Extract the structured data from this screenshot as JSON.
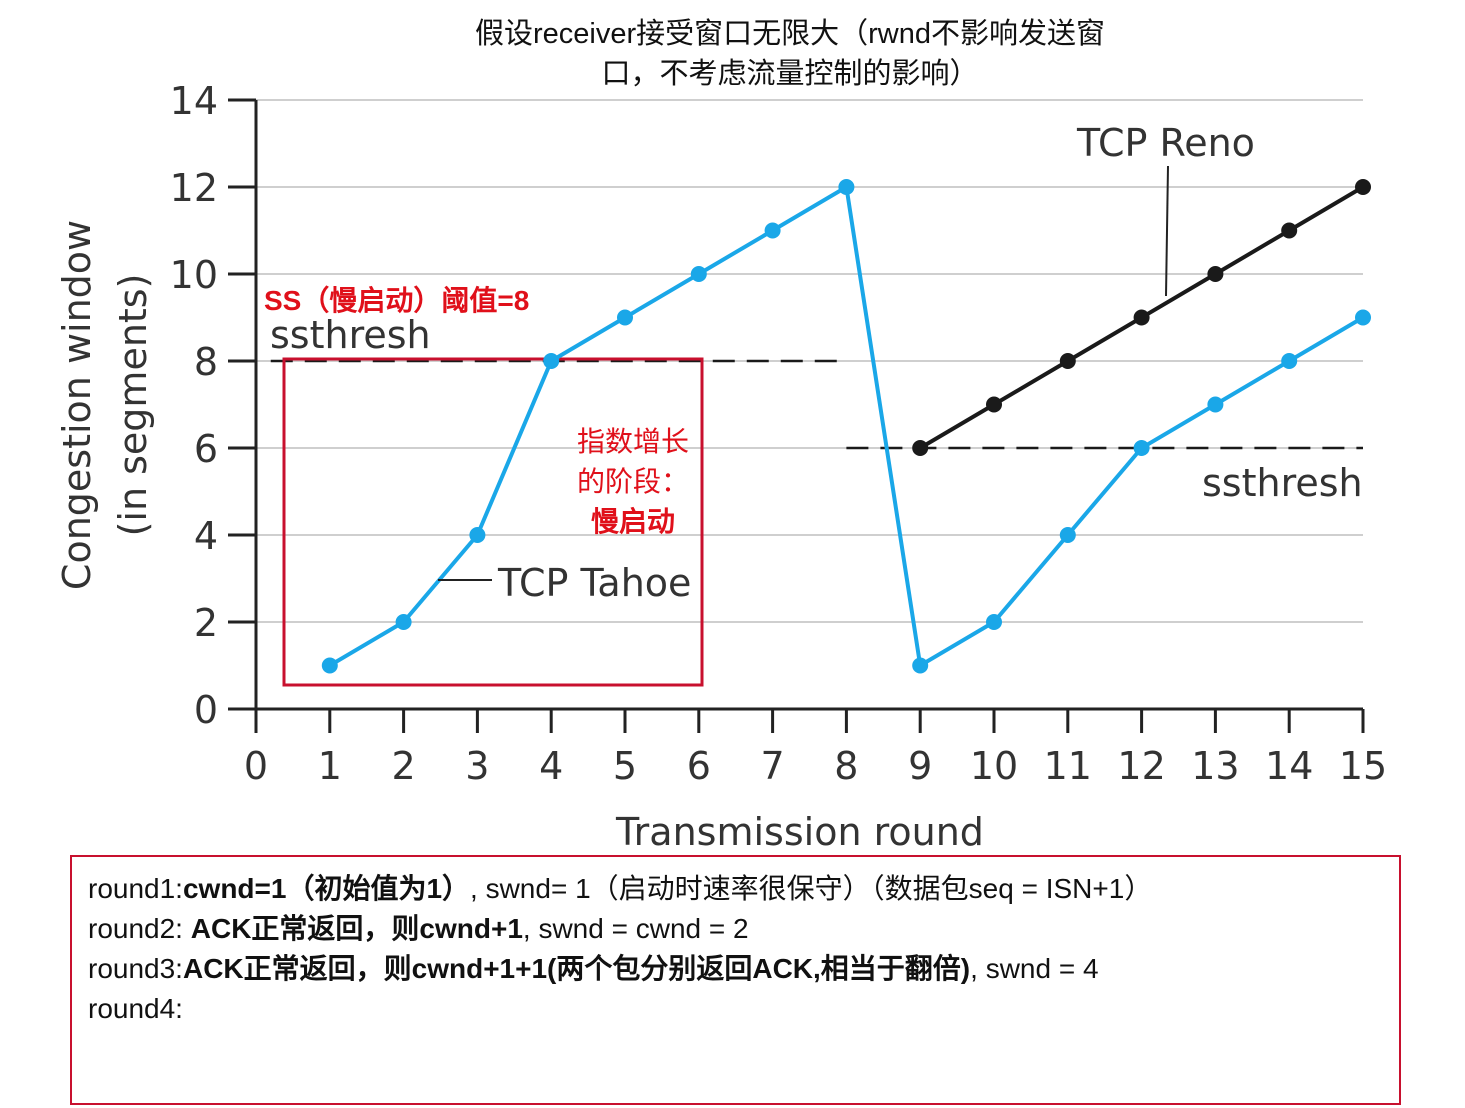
{
  "title_lines": [
    "假设receiver接受窗口无限大（rwnd不影响发送窗",
    "口，不考虑流量控制的影响）"
  ],
  "chart_data": {
    "type": "line",
    "xlabel": "Transmission round",
    "ylabel_lines": [
      "Congestion window",
      "(in segments)"
    ],
    "x_ticks": [
      0,
      1,
      2,
      3,
      4,
      5,
      6,
      7,
      8,
      9,
      10,
      11,
      12,
      13,
      14,
      15
    ],
    "y_ticks": [
      0,
      2,
      4,
      6,
      8,
      10,
      12,
      14
    ],
    "xlim": [
      0,
      15
    ],
    "ylim": [
      0,
      14
    ],
    "grid": true,
    "series": [
      {
        "name": "TCP Tahoe",
        "color": "#1aa7e8",
        "x": [
          1,
          2,
          3,
          4,
          5,
          6,
          7,
          8,
          9,
          10,
          11,
          12,
          13,
          14,
          15
        ],
        "y": [
          1,
          2,
          4,
          8,
          9,
          10,
          11,
          12,
          1,
          2,
          4,
          6,
          7,
          8,
          9
        ]
      },
      {
        "name": "TCP Reno",
        "color": "#1a1a1a",
        "x": [
          9,
          10,
          11,
          12,
          13,
          14,
          15
        ],
        "y": [
          6,
          7,
          8,
          9,
          10,
          11,
          12
        ]
      }
    ],
    "thresholds": [
      {
        "label": "ssthresh",
        "value": 8,
        "x_range": [
          0.2,
          8
        ]
      },
      {
        "label": "ssthresh",
        "value": 6,
        "x_range": [
          8,
          15
        ]
      }
    ],
    "annotations": {
      "ss_threshold": "SS（慢启动）阈值=8",
      "phase_line1": "指数增长",
      "phase_line2": "的阶段：",
      "phase_line3": "慢启动"
    },
    "accent_color": "#e0101a"
  },
  "notes": {
    "r1_a": "round1:",
    "r1_b": "cwnd=1（初始值为1）",
    "r1_c": ", swnd= 1（启动时速率很保守）（数据包seq = ISN+1）",
    "r2_a": "round2: ",
    "r2_b": "ACK正常返回，则cwnd+1",
    "r2_c": ", swnd = cwnd = 2",
    "r3_a": "round3:",
    "r3_b": "ACK正常返回，则cwnd+1+1(两个包分别返回ACK,相当于翻倍)",
    "r3_c": ", swnd = 4",
    "r4_a": "round4:"
  }
}
